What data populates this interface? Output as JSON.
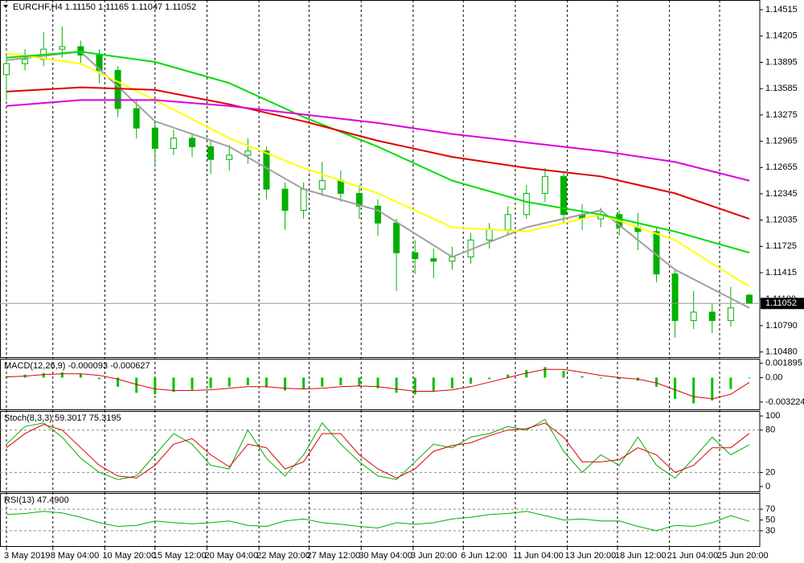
{
  "chart_data": [
    {
      "type": "candlestick",
      "title": "EURCHF,H4  1.11150 1.11165 1.11047 1.11052",
      "up_color": "#ffffff",
      "down_color": "#00b000",
      "edge_color": "#00b000",
      "open": [
        1.1375,
        1.1388,
        1.1393,
        1.1405,
        1.1408,
        1.1398,
        1.138,
        1.1335,
        1.1312,
        1.1288,
        1.13,
        1.129,
        1.1275,
        1.128,
        1.1285,
        1.124,
        1.1215,
        1.124,
        1.125,
        1.1235,
        1.122,
        1.12,
        1.1165,
        1.1158,
        1.1155,
        1.116,
        1.118,
        1.1192,
        1.121,
        1.1235,
        1.1255,
        1.121,
        1.1205,
        1.121,
        1.1195,
        1.119,
        1.114,
        1.1085,
        1.1095,
        1.1085,
        1.1115
      ],
      "high": [
        1.1398,
        1.1405,
        1.1425,
        1.1432,
        1.1415,
        1.1405,
        1.1385,
        1.1345,
        1.1318,
        1.131,
        1.1305,
        1.1298,
        1.1292,
        1.13,
        1.129,
        1.1248,
        1.1248,
        1.1272,
        1.1262,
        1.1245,
        1.1228,
        1.1205,
        1.118,
        1.117,
        1.1172,
        1.1188,
        1.12,
        1.122,
        1.1245,
        1.1265,
        1.126,
        1.1222,
        1.1218,
        1.1215,
        1.1212,
        1.1195,
        1.1145,
        1.112,
        1.1105,
        1.1125,
        1.11165
      ],
      "low": [
        1.1345,
        1.138,
        1.1385,
        1.1395,
        1.1388,
        1.1365,
        1.1325,
        1.13,
        1.1268,
        1.128,
        1.1278,
        1.1258,
        1.1262,
        1.127,
        1.1228,
        1.1192,
        1.1205,
        1.1232,
        1.1225,
        1.1205,
        1.1185,
        1.112,
        1.114,
        1.1135,
        1.1145,
        1.1152,
        1.117,
        1.1185,
        1.1205,
        1.1225,
        1.12,
        1.1192,
        1.1195,
        1.1185,
        1.1168,
        1.113,
        1.1065,
        1.1075,
        1.107,
        1.1078,
        1.11047
      ],
      "close": [
        1.1388,
        1.1393,
        1.1405,
        1.1408,
        1.1398,
        1.138,
        1.1335,
        1.1312,
        1.1288,
        1.13,
        1.129,
        1.1275,
        1.128,
        1.1285,
        1.124,
        1.1215,
        1.124,
        1.125,
        1.1235,
        1.122,
        1.12,
        1.1165,
        1.1158,
        1.1155,
        1.116,
        1.118,
        1.1192,
        1.121,
        1.1235,
        1.1255,
        1.121,
        1.1205,
        1.121,
        1.1195,
        1.119,
        1.114,
        1.1085,
        1.1095,
        1.1085,
        1.11,
        1.11052
      ],
      "series": [
        {
          "color": "#a0a0a0",
          "x": [
            0,
            4,
            8,
            12,
            16,
            20,
            24,
            28,
            32,
            36,
            40
          ],
          "values": [
            1.1392,
            1.1402,
            1.132,
            1.129,
            1.124,
            1.1215,
            1.116,
            1.1195,
            1.1215,
            1.1145,
            1.11
          ]
        },
        {
          "color": "#ffff00",
          "x": [
            0,
            4,
            8,
            12,
            16,
            20,
            24,
            28,
            32,
            36,
            40
          ],
          "values": [
            1.14,
            1.1388,
            1.1345,
            1.13,
            1.1265,
            1.1235,
            1.1195,
            1.119,
            1.121,
            1.118,
            1.1125
          ]
        },
        {
          "color": "#00dd00",
          "x": [
            0,
            4,
            8,
            12,
            16,
            20,
            24,
            28,
            32,
            36,
            40
          ],
          "values": [
            1.1395,
            1.1402,
            1.139,
            1.1365,
            1.1325,
            1.129,
            1.125,
            1.1225,
            1.121,
            1.119,
            1.1165
          ]
        },
        {
          "color": "#dd0000",
          "x": [
            0,
            4,
            8,
            12,
            16,
            20,
            24,
            28,
            32,
            36,
            40
          ],
          "values": [
            1.1355,
            1.136,
            1.1357,
            1.134,
            1.132,
            1.1297,
            1.1278,
            1.1265,
            1.1255,
            1.1235,
            1.1205
          ]
        },
        {
          "color": "#dd00dd",
          "x": [
            0,
            4,
            8,
            12,
            16,
            20,
            24,
            28,
            32,
            36,
            40
          ],
          "values": [
            1.1338,
            1.1345,
            1.1345,
            1.1338,
            1.1328,
            1.1318,
            1.1305,
            1.1295,
            1.1285,
            1.1272,
            1.125
          ]
        }
      ],
      "current_price": 1.11052,
      "ylim": [
        1.1041,
        1.1463
      ],
      "yticks": [
        1.14515,
        1.14205,
        1.13895,
        1.13585,
        1.13275,
        1.12965,
        1.12655,
        1.12345,
        1.12035,
        1.11725,
        1.11415,
        {
          "value": 1.111,
          "label": "1.11100"
        },
        {
          "value": 1.1079,
          "label": "1.10790"
        },
        {
          "value": 1.1048,
          "label": "1.10480"
        }
      ]
    },
    {
      "type": "macd",
      "title": "MACD(12,26,9) -0.000093 -0.000627",
      "series": [
        {
          "color": "#00c000",
          "style": "bar",
          "values": [
            0.0002,
            0.0004,
            0.0006,
            0.0007,
            0.0005,
            -0.0002,
            -0.0012,
            -0.002,
            -0.0022,
            -0.0019,
            -0.0016,
            -0.0014,
            -0.0012,
            -0.001,
            -0.0013,
            -0.0017,
            -0.0015,
            -0.0012,
            -0.001,
            -0.0011,
            -0.0014,
            -0.002,
            -0.0022,
            -0.0018,
            -0.0014,
            -0.0008,
            -0.0002,
            0.0004,
            0.001,
            0.0014,
            0.0009,
            0.0002,
            -0.0001,
            -0.0002,
            -0.0004,
            -0.0012,
            -0.0028,
            -0.0034,
            -0.003,
            -0.0015,
            -9.3e-05
          ]
        },
        {
          "color": "#dd0000",
          "values": [
            0.0001,
            0.0002,
            0.0004,
            0.0005,
            0.0005,
            0.0003,
            -0.0002,
            -0.0009,
            -0.0015,
            -0.0017,
            -0.0017,
            -0.0016,
            -0.0014,
            -0.0012,
            -0.0012,
            -0.0014,
            -0.0015,
            -0.0014,
            -0.0012,
            -0.0011,
            -0.0012,
            -0.0015,
            -0.0018,
            -0.0018,
            -0.0016,
            -0.0012,
            -0.0006,
            0,
            0.0006,
            0.0011,
            0.0011,
            0.0007,
            0.0003,
            0,
            -0.0002,
            -0.0007,
            -0.0016,
            -0.0025,
            -0.0028,
            -0.0022,
            -0.000627
          ]
        }
      ],
      "ylim": [
        -0.0043,
        0.0025
      ],
      "yticks": [
        0.001895,
        {
          "value": 0,
          "label": "0.00"
        },
        -0.003224
      ]
    },
    {
      "type": "line",
      "title": "Stoch(8,3,3) 59.3017 75.3195",
      "series": [
        {
          "color": "#00b000",
          "values": [
            60,
            85,
            90,
            70,
            40,
            20,
            10,
            15,
            45,
            75,
            60,
            30,
            25,
            80,
            40,
            15,
            45,
            90,
            60,
            35,
            15,
            10,
            35,
            60,
            55,
            70,
            75,
            85,
            80,
            95,
            50,
            20,
            45,
            30,
            70,
            30,
            12,
            40,
            70,
            45,
            59.3017
          ]
        },
        {
          "color": "#dd0000",
          "values": [
            55,
            75,
            88,
            80,
            55,
            30,
            15,
            12,
            30,
            60,
            68,
            45,
            28,
            60,
            55,
            25,
            35,
            75,
            75,
            45,
            25,
            12,
            25,
            50,
            58,
            62,
            72,
            80,
            82,
            90,
            70,
            35,
            35,
            38,
            55,
            45,
            20,
            30,
            55,
            55,
            75.3195
          ]
        }
      ],
      "levels": [
        80,
        20
      ],
      "ylim": [
        -8,
        107
      ],
      "yticks": [
        100,
        80,
        20,
        0
      ]
    },
    {
      "type": "line",
      "title": "RSI(13) 47.4900",
      "series": [
        {
          "color": "#00b000",
          "values": [
            60,
            62,
            66,
            63,
            55,
            45,
            38,
            40,
            48,
            45,
            43,
            45,
            48,
            40,
            38,
            48,
            52,
            45,
            42,
            38,
            35,
            45,
            42,
            45,
            52,
            55,
            60,
            62,
            66,
            58,
            50,
            52,
            48,
            48,
            38,
            30,
            40,
            38,
            45,
            58,
            47.49
          ]
        }
      ],
      "levels": [
        70,
        30
      ],
      "ylim": [
        0,
        100
      ],
      "yticks": [
        70,
        50,
        30
      ],
      "xticks": [
        {
          "value": 0,
          "label": "3 May 2019"
        },
        {
          "value": 2.5,
          "label": "8 May 04:00"
        },
        {
          "value": 5.3,
          "label": "10 May 20:00"
        },
        {
          "value": 8,
          "label": "15 May 12:00"
        },
        {
          "value": 10.8,
          "label": "20 May 04:00"
        },
        {
          "value": 13.6,
          "label": "22 May 20:00"
        },
        {
          "value": 16.3,
          "label": "27 May 12:00"
        },
        {
          "value": 19.1,
          "label": "30 May 04:00"
        },
        {
          "value": 21.9,
          "label": "3 Jun 20:00"
        },
        {
          "value": 24.6,
          "label": "6 Jun 12:00"
        },
        {
          "value": 27.4,
          "label": "11 Jun 04:00"
        },
        {
          "value": 30.2,
          "label": "13 Jun 20:00"
        },
        {
          "value": 32.9,
          "label": "18 Jun 12:00"
        },
        {
          "value": 35.7,
          "label": "21 Jun 04:00"
        },
        {
          "value": 38.4,
          "label": "25 Jun 20:00"
        }
      ]
    }
  ]
}
